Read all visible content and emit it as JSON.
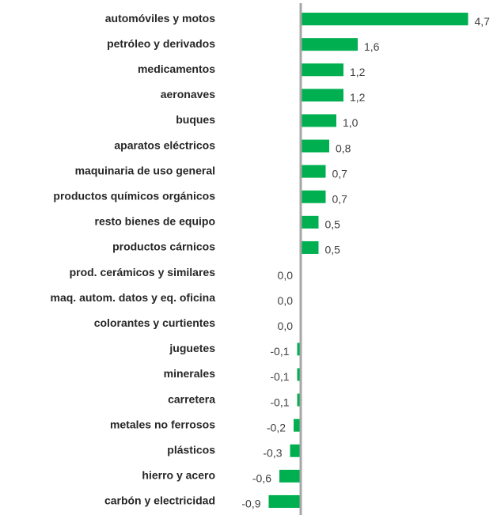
{
  "chart_data": {
    "type": "bar",
    "orientation": "horizontal",
    "color": "#00b050",
    "categories": [
      "automóviles y motos",
      "petróleo y derivados",
      "medicamentos",
      "aeronaves",
      "buques",
      "aparatos eléctricos",
      "maquinaria de uso general",
      "productos químicos orgánicos",
      "resto bienes de equipo",
      "productos cárnicos",
      "prod. cerámicos y similares",
      "maq. autom. datos y eq. oficina",
      "colorantes y curtientes",
      "juguetes",
      "minerales",
      "carretera",
      "metales no ferrosos",
      "plásticos",
      "hierro y acero",
      "carbón y electricidad"
    ],
    "values": [
      4.7,
      1.6,
      1.2,
      1.2,
      1.0,
      0.8,
      0.7,
      0.7,
      0.5,
      0.5,
      0.0,
      0.0,
      0.0,
      -0.1,
      -0.1,
      -0.1,
      -0.2,
      -0.3,
      -0.6,
      -0.9
    ],
    "value_labels": [
      "4,7",
      "1,6",
      "1,2",
      "1,2",
      "1,0",
      "0,8",
      "0,7",
      "0,7",
      "0,5",
      "0,5",
      "0,0",
      "0,0",
      "0,0",
      "-0,1",
      "-0,1",
      "-0,1",
      "-0,2",
      "-0,3",
      "-0,6",
      "-0,9"
    ],
    "xlim": [
      -1,
      5
    ]
  }
}
